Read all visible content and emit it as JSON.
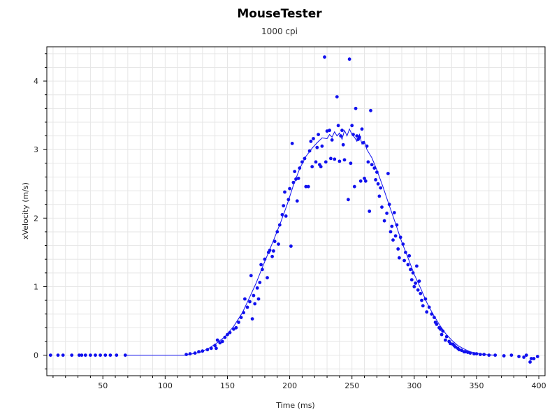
{
  "chart_data": {
    "type": "scatter",
    "title": "MouseTester",
    "subtitle": "1000 cpi",
    "xlabel": "Time (ms)",
    "ylabel": "xVelocity (m/s)",
    "xlim": [
      5,
      405
    ],
    "ylim": [
      -0.3,
      4.5
    ],
    "x_ticks": [
      50,
      100,
      150,
      200,
      250,
      300,
      350,
      400
    ],
    "y_ticks": [
      0,
      1,
      2,
      3,
      4
    ],
    "grid": true,
    "legend": "none",
    "colors": {
      "series": "#1010ee",
      "grid": "#e6e6e6",
      "axis": "#000000"
    },
    "series": [
      {
        "kind": "points",
        "points": [
          [
            8,
            0
          ],
          [
            14,
            0
          ],
          [
            18,
            0
          ],
          [
            25,
            0
          ],
          [
            31,
            0
          ],
          [
            33,
            0
          ],
          [
            36,
            0
          ],
          [
            40,
            0
          ],
          [
            44,
            0
          ],
          [
            48,
            0
          ],
          [
            52,
            0
          ],
          [
            56,
            0
          ],
          [
            61,
            0
          ],
          [
            68,
            0
          ],
          [
            117,
            0.01
          ],
          [
            120,
            0.02
          ],
          [
            124,
            0.03
          ],
          [
            127,
            0.05
          ],
          [
            130,
            0.06
          ],
          [
            134,
            0.08
          ],
          [
            137,
            0.1
          ],
          [
            140,
            0.14
          ],
          [
            141,
            0.1
          ],
          [
            142,
            0.22
          ],
          [
            144,
            0.18
          ],
          [
            146,
            0.2
          ],
          [
            148,
            0.26
          ],
          [
            150,
            0.3
          ],
          [
            152,
            0.33
          ],
          [
            155,
            0.38
          ],
          [
            157,
            0.4
          ],
          [
            159,
            0.48
          ],
          [
            161,
            0.55
          ],
          [
            163,
            0.62
          ],
          [
            164,
            0.82
          ],
          [
            166,
            0.7
          ],
          [
            168,
            0.78
          ],
          [
            169,
            1.16
          ],
          [
            170,
            0.53
          ],
          [
            171,
            0.87
          ],
          [
            172,
            0.75
          ],
          [
            174,
            0.98
          ],
          [
            175,
            0.82
          ],
          [
            176,
            1.06
          ],
          [
            177,
            1.32
          ],
          [
            178,
            1.25
          ],
          [
            180,
            1.4
          ],
          [
            182,
            1.13
          ],
          [
            183,
            1.5
          ],
          [
            184,
            1.53
          ],
          [
            186,
            1.44
          ],
          [
            187,
            1.52
          ],
          [
            188,
            1.66
          ],
          [
            190,
            1.8
          ],
          [
            191,
            1.62
          ],
          [
            192,
            1.9
          ],
          [
            194,
            2.05
          ],
          [
            195,
            2.18
          ],
          [
            196,
            2.38
          ],
          [
            197,
            2.03
          ],
          [
            199,
            2.27
          ],
          [
            200,
            2.43
          ],
          [
            201,
            1.59
          ],
          [
            202,
            3.09
          ],
          [
            203,
            2.52
          ],
          [
            204,
            2.68
          ],
          [
            205,
            2.57
          ],
          [
            206,
            2.25
          ],
          [
            207,
            2.58
          ],
          [
            208,
            2.73
          ],
          [
            210,
            2.82
          ],
          [
            212,
            2.87
          ],
          [
            213,
            2.46
          ],
          [
            215,
            2.46
          ],
          [
            216,
            2.98
          ],
          [
            217,
            3.12
          ],
          [
            218,
            2.75
          ],
          [
            219,
            3.16
          ],
          [
            221,
            2.82
          ],
          [
            222,
            3.03
          ],
          [
            223,
            3.22
          ],
          [
            224,
            2.78
          ],
          [
            225,
            2.75
          ],
          [
            226,
            3.05
          ],
          [
            228,
            4.35
          ],
          [
            229,
            2.82
          ],
          [
            230,
            3.27
          ],
          [
            232,
            3.28
          ],
          [
            233,
            2.87
          ],
          [
            234,
            3.14
          ],
          [
            236,
            2.86
          ],
          [
            238,
            3.77
          ],
          [
            239,
            3.35
          ],
          [
            240,
            2.83
          ],
          [
            241,
            3.2
          ],
          [
            242,
            3.28
          ],
          [
            243,
            3.07
          ],
          [
            244,
            2.85
          ],
          [
            247,
            2.27
          ],
          [
            248,
            4.32
          ],
          [
            249,
            2.8
          ],
          [
            250,
            3.35
          ],
          [
            251,
            3.22
          ],
          [
            252,
            2.46
          ],
          [
            253,
            3.6
          ],
          [
            254,
            3.2
          ],
          [
            255,
            3.15
          ],
          [
            256,
            3.18
          ],
          [
            257,
            2.54
          ],
          [
            258,
            3.3
          ],
          [
            259,
            3.1
          ],
          [
            260,
            2.58
          ],
          [
            261,
            2.54
          ],
          [
            262,
            3.05
          ],
          [
            263,
            2.82
          ],
          [
            264,
            2.1
          ],
          [
            265,
            3.57
          ],
          [
            266,
            2.78
          ],
          [
            268,
            2.73
          ],
          [
            269,
            2.56
          ],
          [
            270,
            2.67
          ],
          [
            271,
            2.5
          ],
          [
            272,
            2.32
          ],
          [
            273,
            2.44
          ],
          [
            274,
            2.16
          ],
          [
            276,
            1.96
          ],
          [
            278,
            2.07
          ],
          [
            279,
            2.65
          ],
          [
            280,
            2.2
          ],
          [
            281,
            1.8
          ],
          [
            282,
            1.88
          ],
          [
            283,
            1.68
          ],
          [
            284,
            2.08
          ],
          [
            285,
            1.74
          ],
          [
            286,
            1.9
          ],
          [
            287,
            1.55
          ],
          [
            288,
            1.42
          ],
          [
            289,
            1.72
          ],
          [
            291,
            1.62
          ],
          [
            292,
            1.38
          ],
          [
            293,
            1.5
          ],
          [
            295,
            1.32
          ],
          [
            296,
            1.45
          ],
          [
            297,
            1.25
          ],
          [
            298,
            1.1
          ],
          [
            299,
            1.2
          ],
          [
            300,
            1.0
          ],
          [
            301,
            1.05
          ],
          [
            302,
            1.3
          ],
          [
            303,
            0.95
          ],
          [
            304,
            1.08
          ],
          [
            305,
            0.9
          ],
          [
            306,
            0.8
          ],
          [
            307,
            0.72
          ],
          [
            309,
            0.82
          ],
          [
            310,
            0.63
          ],
          [
            312,
            0.7
          ],
          [
            314,
            0.6
          ],
          [
            316,
            0.55
          ],
          [
            317,
            0.48
          ],
          [
            318,
            0.45
          ],
          [
            320,
            0.4
          ],
          [
            321,
            0.38
          ],
          [
            322,
            0.3
          ],
          [
            323,
            0.35
          ],
          [
            325,
            0.22
          ],
          [
            326,
            0.27
          ],
          [
            328,
            0.2
          ],
          [
            329,
            0.17
          ],
          [
            331,
            0.16
          ],
          [
            332,
            0.14
          ],
          [
            333,
            0.12
          ],
          [
            335,
            0.1
          ],
          [
            336,
            0.08
          ],
          [
            338,
            0.07
          ],
          [
            340,
            0.05
          ],
          [
            341,
            0.05
          ],
          [
            343,
            0.04
          ],
          [
            345,
            0.03
          ],
          [
            348,
            0.02
          ],
          [
            350,
            0.02
          ],
          [
            353,
            0.01
          ],
          [
            356,
            0.01
          ],
          [
            360,
            0
          ],
          [
            365,
            0
          ],
          [
            372,
            -0.01
          ],
          [
            378,
            0
          ],
          [
            384,
            -0.02
          ],
          [
            388,
            -0.03
          ],
          [
            390,
            0
          ],
          [
            393,
            -0.1
          ],
          [
            394,
            -0.05
          ],
          [
            396,
            -0.05
          ],
          [
            399,
            -0.02
          ]
        ]
      },
      {
        "kind": "line",
        "points": [
          [
            68,
            0
          ],
          [
            116,
            0
          ],
          [
            122,
            0.02
          ],
          [
            128,
            0.04
          ],
          [
            135,
            0.1
          ],
          [
            141,
            0.17
          ],
          [
            148,
            0.27
          ],
          [
            155,
            0.42
          ],
          [
            162,
            0.62
          ],
          [
            168,
            0.85
          ],
          [
            173,
            1.05
          ],
          [
            178,
            1.28
          ],
          [
            183,
            1.5
          ],
          [
            188,
            1.72
          ],
          [
            193,
            1.95
          ],
          [
            198,
            2.2
          ],
          [
            203,
            2.48
          ],
          [
            208,
            2.72
          ],
          [
            213,
            2.9
          ],
          [
            218,
            3.02
          ],
          [
            222,
            3.1
          ],
          [
            226,
            3.17
          ],
          [
            230,
            3.16
          ],
          [
            232,
            3.22
          ],
          [
            234,
            3.18
          ],
          [
            236,
            3.26
          ],
          [
            238,
            3.2
          ],
          [
            240,
            3.24
          ],
          [
            242,
            3.15
          ],
          [
            244,
            3.28
          ],
          [
            246,
            3.2
          ],
          [
            248,
            3.3
          ],
          [
            250,
            3.22
          ],
          [
            252,
            3.18
          ],
          [
            254,
            3.12
          ],
          [
            256,
            3.22
          ],
          [
            258,
            3.08
          ],
          [
            260,
            3.12
          ],
          [
            262,
            3.0
          ],
          [
            266,
            2.88
          ],
          [
            270,
            2.7
          ],
          [
            275,
            2.45
          ],
          [
            280,
            2.18
          ],
          [
            285,
            1.92
          ],
          [
            290,
            1.65
          ],
          [
            295,
            1.42
          ],
          [
            300,
            1.18
          ],
          [
            305,
            0.98
          ],
          [
            310,
            0.77
          ],
          [
            315,
            0.6
          ],
          [
            320,
            0.45
          ],
          [
            325,
            0.32
          ],
          [
            330,
            0.22
          ],
          [
            335,
            0.14
          ],
          [
            340,
            0.09
          ],
          [
            345,
            0.05
          ],
          [
            350,
            0.03
          ],
          [
            356,
            0.01
          ],
          [
            365,
            0
          ]
        ]
      }
    ]
  }
}
